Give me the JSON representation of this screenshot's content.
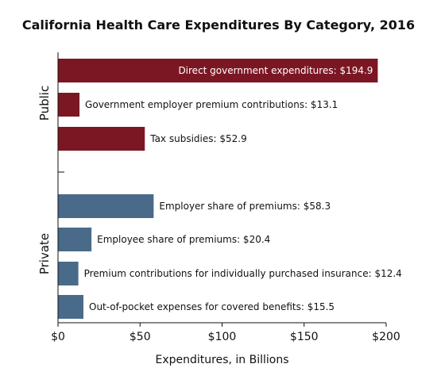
{
  "chart_data": {
    "type": "bar",
    "orientation": "horizontal",
    "title": "California Health Care Expenditures By Category, 2016",
    "xlabel": "Expenditures, in Billions",
    "xlim": [
      0,
      200
    ],
    "xticks": [
      0,
      50,
      100,
      150,
      200
    ],
    "xtick_labels": [
      "$0",
      "$50",
      "$100",
      "$150",
      "$200"
    ],
    "grid": false,
    "colors": {
      "Public": "#7b1723",
      "Private": "#4a6a8a"
    },
    "groups": [
      {
        "name": "Public",
        "bars": [
          {
            "category": "Direct government expenditures",
            "value": 194.9,
            "label": "Direct government expenditures: $194.9"
          },
          {
            "category": "Government employer premium contributions",
            "value": 13.1,
            "label": "Government employer premium contributions: $13.1"
          },
          {
            "category": "Tax subsidies",
            "value": 52.9,
            "label": "Tax subsidies: $52.9"
          }
        ]
      },
      {
        "name": "Private",
        "bars": [
          {
            "category": "Employer share of premiums",
            "value": 58.3,
            "label": "Employer share of premiums: $58.3"
          },
          {
            "category": "Employee share of premiums",
            "value": 20.4,
            "label": "Employee share of premiums: $20.4"
          },
          {
            "category": "Premium contributions for individually purchased insurance",
            "value": 12.4,
            "label": "Premium contributions for individually purchased insurance: $12.4"
          },
          {
            "category": "Out-of-pocket expenses for covered benefits",
            "value": 15.5,
            "label": "Out-of-pocket expenses for covered benefits: $15.5"
          }
        ]
      }
    ]
  }
}
